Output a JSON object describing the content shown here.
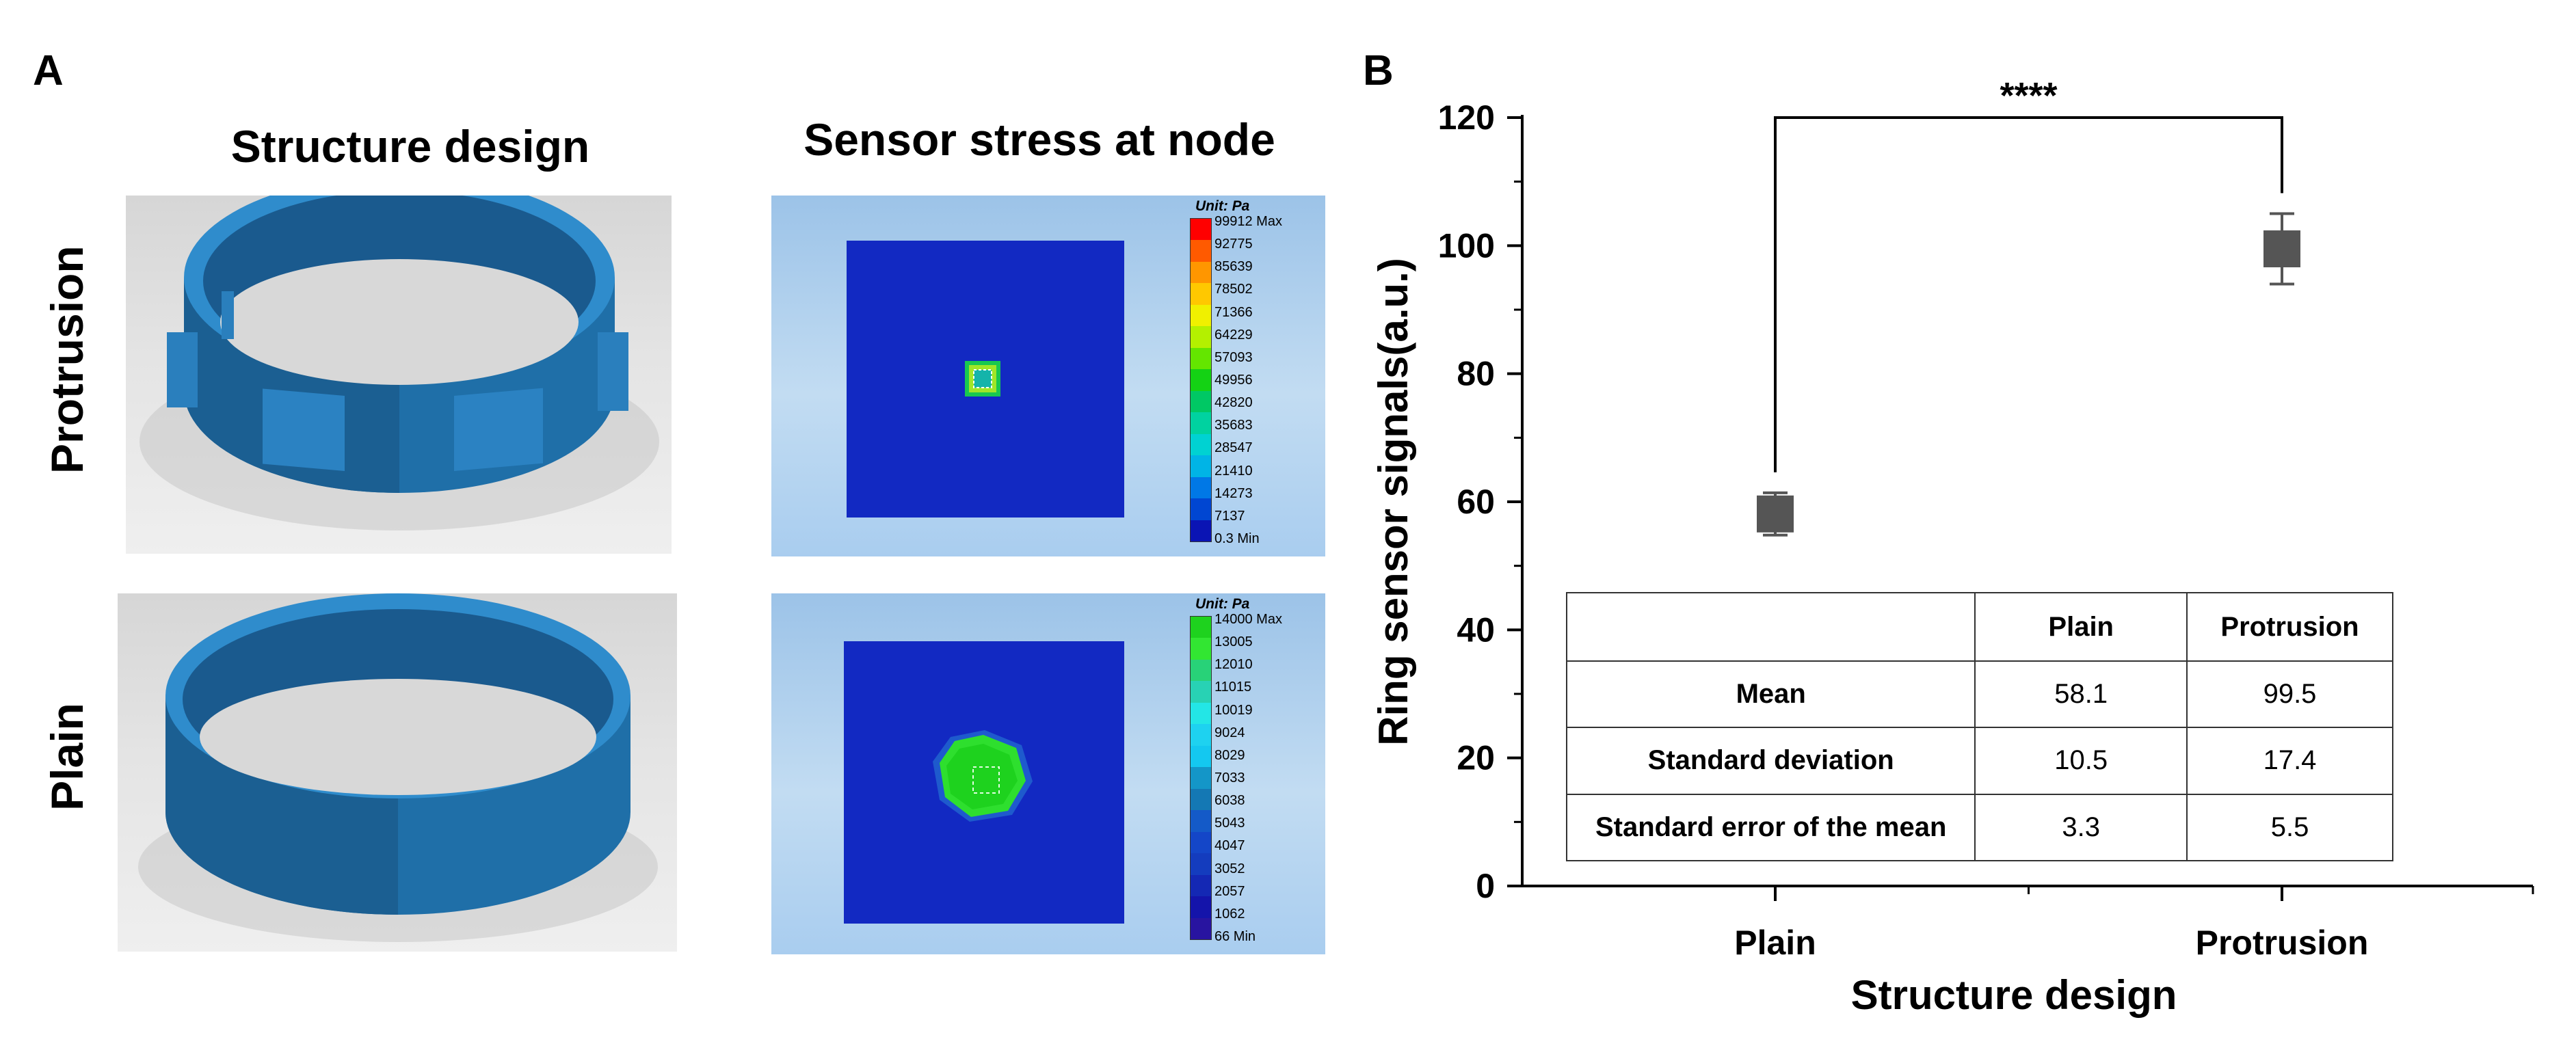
{
  "panel_a": {
    "letter": "A",
    "col_titles": [
      "Structure design",
      "Sensor stress at node"
    ],
    "row_titles": [
      "Protrusion",
      "Plain"
    ],
    "legends": [
      {
        "unit": "Unit: Pa",
        "labels": [
          "99912 Max",
          "92775",
          "85639",
          "78502",
          "71366",
          "64229",
          "57093",
          "49956",
          "42820",
          "35683",
          "28547",
          "21410",
          "14273",
          "7137",
          "0.3 Min"
        ],
        "colors": [
          "#ff0000",
          "#ff5a00",
          "#ff9600",
          "#ffc800",
          "#f0f000",
          "#b4f000",
          "#64e600",
          "#14d214",
          "#00c864",
          "#00d2a0",
          "#00d2d2",
          "#00b4e6",
          "#0078e6",
          "#0046d2",
          "#0a14b4"
        ]
      },
      {
        "unit": "Unit: Pa",
        "labels": [
          "14000 Max",
          "13005",
          "12010",
          "11015",
          "10019",
          "9024",
          "8029",
          "7033",
          "6038",
          "5043",
          "4047",
          "3052",
          "2057",
          "1062",
          "66 Min"
        ],
        "colors": [
          "#1ed21e",
          "#32e632",
          "#28d278",
          "#28d2b4",
          "#23e6e6",
          "#1ed2f0",
          "#14c8f0",
          "#1496c8",
          "#1478b4",
          "#145ac8",
          "#1446c8",
          "#143cbe",
          "#1428b4",
          "#1414aa",
          "#2814a0"
        ]
      }
    ]
  },
  "panel_b": {
    "letter": "B",
    "significance": "****",
    "table": {
      "columns": [
        "",
        "Plain",
        "Protrusion"
      ],
      "rows": [
        [
          "Mean",
          "58.1",
          "99.5"
        ],
        [
          "Standard deviation",
          "10.5",
          "17.4"
        ],
        [
          "Standard error of the mean",
          "3.3",
          "5.5"
        ]
      ]
    }
  },
  "chart_data": {
    "type": "scatter",
    "title": "",
    "xlabel": "Structure design",
    "ylabel": "Ring sensor signals(a.u.)",
    "categories": [
      "Plain",
      "Protrusion"
    ],
    "values": [
      58.1,
      99.5
    ],
    "error_low": [
      54.8,
      94.0
    ],
    "error_high": [
      61.4,
      105.0
    ],
    "ylim": [
      0,
      120
    ],
    "yticks": [
      0,
      20,
      40,
      60,
      80,
      100,
      120
    ],
    "marker": "square",
    "marker_color": "#555555",
    "grid": false
  }
}
